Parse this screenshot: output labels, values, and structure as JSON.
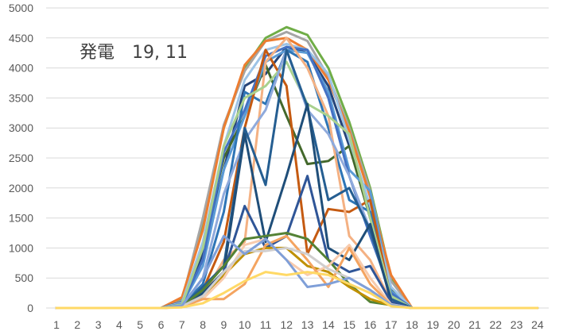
{
  "chart_data": {
    "type": "line",
    "title": "発電　19,  11",
    "x": [
      "1",
      "2",
      "3",
      "4",
      "5",
      "6",
      "7",
      "8",
      "9",
      "10",
      "11",
      "12",
      "13",
      "14",
      "15",
      "16",
      "17",
      "18",
      "19",
      "20",
      "21",
      "22",
      "23",
      "24"
    ],
    "ylim": [
      0,
      5000
    ],
    "yticks": [
      0,
      500,
      1000,
      1500,
      2000,
      2500,
      3000,
      3500,
      4000,
      4500,
      5000
    ],
    "grid": "horizontal",
    "series": [
      {
        "color": "#70AD47",
        "values": [
          0,
          0,
          0,
          0,
          0,
          0,
          150,
          1400,
          3000,
          4000,
          4500,
          4680,
          4550,
          4000,
          3100,
          2000,
          500,
          0,
          0,
          0,
          0,
          0,
          0,
          0
        ]
      },
      {
        "color": "#A5A5A5",
        "values": [
          0,
          0,
          0,
          0,
          0,
          0,
          120,
          1500,
          3050,
          3950,
          4450,
          4600,
          4450,
          3850,
          3000,
          1950,
          450,
          0,
          0,
          0,
          0,
          0,
          0,
          0
        ]
      },
      {
        "color": "#ED7D31",
        "values": [
          0,
          0,
          0,
          0,
          0,
          0,
          180,
          1300,
          3000,
          4050,
          4450,
          4500,
          4300,
          3800,
          2950,
          1850,
          550,
          0,
          0,
          0,
          0,
          0,
          0,
          0
        ]
      },
      {
        "color": "#264478",
        "values": [
          0,
          0,
          0,
          0,
          0,
          0,
          100,
          900,
          2300,
          3700,
          3900,
          4350,
          4250,
          3700,
          2700,
          1600,
          300,
          0,
          0,
          0,
          0,
          0,
          0,
          0
        ]
      },
      {
        "color": "#43682B",
        "values": [
          0,
          0,
          0,
          0,
          0,
          0,
          80,
          1000,
          2500,
          3200,
          4050,
          3200,
          2400,
          2450,
          2700,
          1500,
          300,
          0,
          0,
          0,
          0,
          0,
          0,
          0
        ]
      },
      {
        "color": "#5B9BD5",
        "values": [
          0,
          0,
          0,
          0,
          0,
          0,
          60,
          700,
          2300,
          3200,
          4100,
          4300,
          4250,
          3600,
          2300,
          1950,
          280,
          0,
          0,
          0,
          0,
          0,
          0,
          0
        ]
      },
      {
        "color": "#9DC3E6",
        "values": [
          0,
          0,
          0,
          0,
          0,
          0,
          90,
          1100,
          2700,
          3800,
          4300,
          4400,
          4300,
          3900,
          2800,
          1700,
          350,
          0,
          0,
          0,
          0,
          0,
          0,
          0
        ]
      },
      {
        "color": "#4472C4",
        "values": [
          0,
          0,
          0,
          0,
          0,
          0,
          70,
          800,
          2600,
          3300,
          4200,
          4350,
          4300,
          3500,
          2200,
          1200,
          250,
          0,
          0,
          0,
          0,
          0,
          0,
          0
        ]
      },
      {
        "color": "#2E75B6",
        "values": [
          0,
          0,
          0,
          0,
          0,
          0,
          50,
          400,
          1600,
          3600,
          3400,
          4300,
          4100,
          3000,
          1800,
          1600,
          200,
          0,
          0,
          0,
          0,
          0,
          0,
          0
        ]
      },
      {
        "color": "#C55A11",
        "values": [
          0,
          0,
          0,
          0,
          0,
          0,
          40,
          300,
          1100,
          3000,
          4300,
          3700,
          900,
          1650,
          1600,
          1800,
          150,
          0,
          0,
          0,
          0,
          0,
          0,
          0
        ]
      },
      {
        "color": "#F4B183",
        "values": [
          0,
          0,
          0,
          0,
          0,
          0,
          30,
          200,
          800,
          1100,
          4100,
          4500,
          4000,
          3200,
          1200,
          800,
          100,
          0,
          0,
          0,
          0,
          0,
          0,
          0
        ]
      },
      {
        "color": "#A9D18E",
        "values": [
          0,
          0,
          0,
          0,
          0,
          0,
          60,
          1000,
          2700,
          3500,
          3700,
          4100,
          3400,
          3200,
          2900,
          1500,
          200,
          0,
          0,
          0,
          0,
          0,
          0,
          0
        ]
      },
      {
        "color": "#8FAADC",
        "values": [
          0,
          0,
          0,
          0,
          0,
          0,
          40,
          500,
          1900,
          2800,
          3300,
          4300,
          3300,
          2900,
          2200,
          1300,
          150,
          0,
          0,
          0,
          0,
          0,
          0,
          0
        ]
      },
      {
        "color": "#255E91",
        "values": [
          0,
          0,
          0,
          0,
          0,
          0,
          30,
          350,
          700,
          3000,
          2050,
          4300,
          3350,
          1800,
          2000,
          1300,
          150,
          0,
          0,
          0,
          0,
          0,
          0,
          0
        ]
      },
      {
        "color": "#1F4E79",
        "values": [
          0,
          0,
          0,
          0,
          0,
          0,
          20,
          250,
          600,
          2900,
          1100,
          2200,
          3400,
          1000,
          800,
          1400,
          100,
          0,
          0,
          0,
          0,
          0,
          0,
          0
        ]
      },
      {
        "color": "#2F5597",
        "values": [
          0,
          0,
          0,
          0,
          0,
          0,
          20,
          200,
          600,
          1700,
          1000,
          1200,
          2200,
          800,
          600,
          700,
          100,
          0,
          0,
          0,
          0,
          0,
          0,
          0
        ]
      },
      {
        "color": "#548235",
        "values": [
          0,
          0,
          0,
          0,
          0,
          0,
          30,
          300,
          700,
          1150,
          1200,
          1250,
          1150,
          800,
          400,
          100,
          50,
          0,
          0,
          0,
          0,
          0,
          0,
          0
        ]
      },
      {
        "color": "#BF9000",
        "values": [
          0,
          0,
          0,
          0,
          0,
          0,
          20,
          200,
          550,
          900,
          1000,
          1000,
          700,
          600,
          350,
          150,
          40,
          0,
          0,
          0,
          0,
          0,
          0,
          0
        ]
      },
      {
        "color": "#F8CBAD",
        "values": [
          0,
          0,
          0,
          0,
          0,
          0,
          20,
          150,
          500,
          1050,
          1150,
          800,
          550,
          700,
          1050,
          500,
          60,
          0,
          0,
          0,
          0,
          0,
          0,
          0
        ]
      },
      {
        "color": "#F4A460",
        "values": [
          0,
          0,
          0,
          0,
          0,
          0,
          15,
          150,
          150,
          400,
          1050,
          1200,
          800,
          350,
          1000,
          400,
          50,
          0,
          0,
          0,
          0,
          0,
          0,
          0
        ]
      },
      {
        "color": "#D0CECE",
        "values": [
          0,
          0,
          0,
          0,
          0,
          0,
          30,
          200,
          600,
          950,
          950,
          1000,
          900,
          650,
          500,
          300,
          60,
          0,
          0,
          0,
          0,
          0,
          0,
          0
        ]
      },
      {
        "color": "#7F9FD8",
        "values": [
          0,
          0,
          0,
          0,
          0,
          0,
          40,
          500,
          1200,
          900,
          1150,
          800,
          350,
          400,
          500,
          300,
          50,
          0,
          0,
          0,
          0,
          0,
          0,
          0
        ]
      },
      {
        "color": "#FFD966",
        "values": [
          0,
          0,
          0,
          0,
          0,
          0,
          10,
          80,
          250,
          450,
          600,
          550,
          600,
          550,
          400,
          250,
          30,
          0,
          0,
          0,
          0,
          0,
          0,
          0
        ]
      }
    ]
  }
}
